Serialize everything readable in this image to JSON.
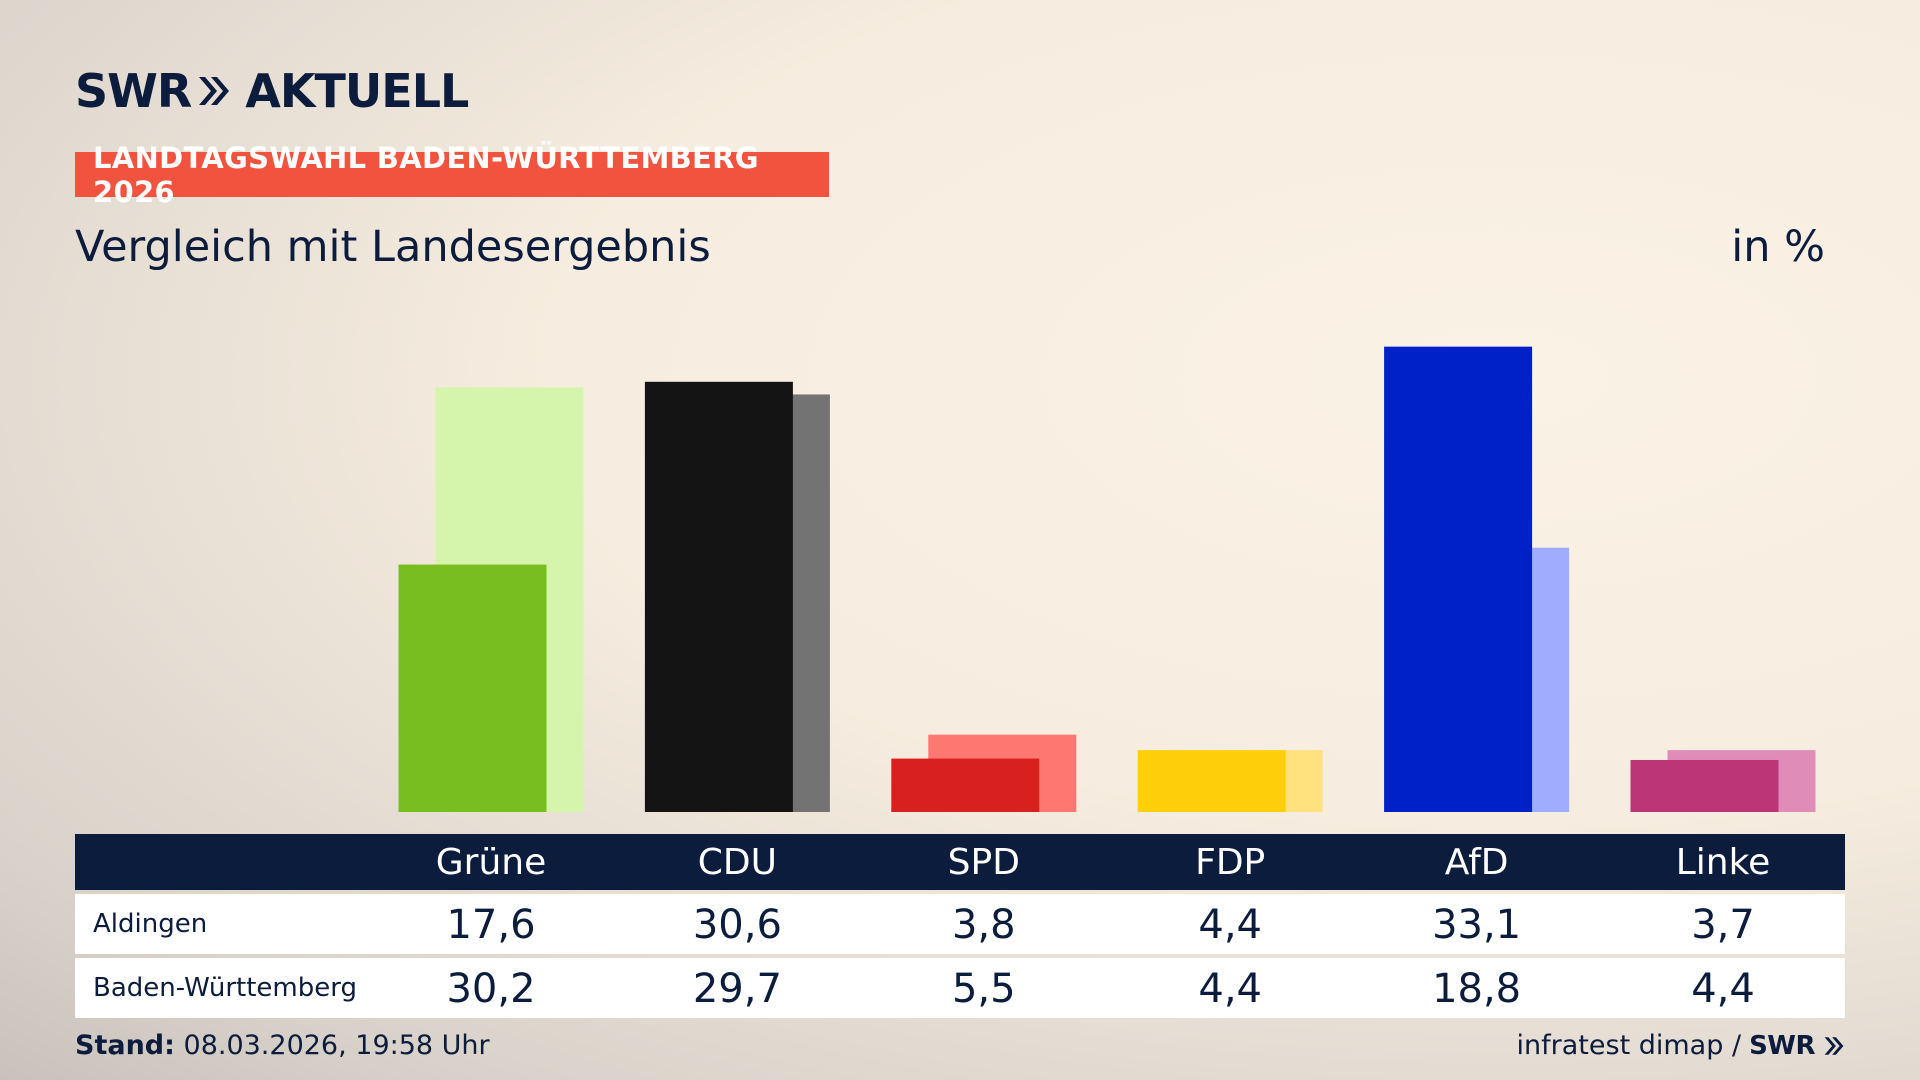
{
  "header": {
    "logo_text": "SWR",
    "logo_suffix": "AKTUELL",
    "badge": "LANDTAGSWAHL BADEN-WÜRTTEMBERG 2026",
    "subtitle": "Vergleich mit Landesergebnis",
    "unit": "in %"
  },
  "table": {
    "rows": [
      {
        "label": "Aldingen"
      },
      {
        "label": "Baden-Württemberg"
      }
    ]
  },
  "chart_data": {
    "type": "bar",
    "categories": [
      "Grüne",
      "CDU",
      "SPD",
      "FDP",
      "AfD",
      "Linke"
    ],
    "series": [
      {
        "name": "Aldingen",
        "values": [
          17.6,
          30.6,
          3.8,
          4.4,
          33.1,
          3.7
        ]
      },
      {
        "name": "Baden-Württemberg",
        "values": [
          30.2,
          29.7,
          5.5,
          4.4,
          18.8,
          4.4
        ]
      }
    ],
    "colors_primary": [
      "#78be1e",
      "#141414",
      "#d8211e",
      "#ffcf0c",
      "#0021c8",
      "#bc3576"
    ],
    "colors_secondary": [
      "#d5f5ad",
      "#737373",
      "#fe7770",
      "#ffe27d",
      "#9fadfe",
      "#df8cb8"
    ],
    "ylim": [
      0,
      34
    ],
    "legend": "table-below"
  },
  "footer": {
    "stand_label": "Stand:",
    "stand_value": "08.03.2026, 19:58 Uhr",
    "source": "infratest dimap /",
    "source_logo": "SWR"
  }
}
